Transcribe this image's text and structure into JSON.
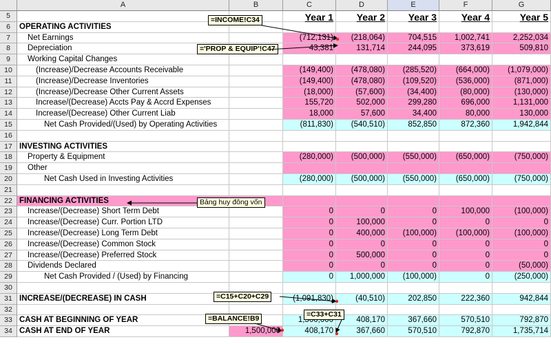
{
  "columns": [
    "A",
    "B",
    "C",
    "D",
    "E",
    "F",
    "G"
  ],
  "selected_column": "E",
  "rows": [
    {
      "n": "5",
      "a": "",
      "b": "",
      "v": [
        "Year 1",
        "Year 2",
        "Year 3",
        "Year 4",
        "Year 5"
      ],
      "type": "header"
    },
    {
      "n": "6",
      "a": "OPERATING ACTIVITIES",
      "b": "",
      "v": [
        "",
        "",
        "",
        "",
        ""
      ],
      "type": "section"
    },
    {
      "n": "7",
      "a": "Net Earnings",
      "b": "",
      "v": [
        "(712,131)",
        "(218,064)",
        "704,515",
        "1,002,741",
        "2,252,034"
      ],
      "type": "pink",
      "indent": 2
    },
    {
      "n": "8",
      "a": "Depreciation",
      "b": "",
      "v": [
        "43,381",
        "131,714",
        "244,095",
        "373,619",
        "509,810"
      ],
      "type": "pink",
      "indent": 2
    },
    {
      "n": "9",
      "a": "Working Capital Changes",
      "b": "",
      "v": [
        "",
        "",
        "",
        "",
        ""
      ],
      "type": "plain",
      "indent": 2
    },
    {
      "n": "10",
      "a": "(Increase)/Decrease Accounts Receivable",
      "b": "",
      "v": [
        "(149,400)",
        "(478,080)",
        "(285,520)",
        "(664,000)",
        "(1,079,000)"
      ],
      "type": "pink",
      "indent": 4
    },
    {
      "n": "11",
      "a": "(Increase)/Decrease Inventories",
      "b": "",
      "v": [
        "(149,400)",
        "(478,080)",
        "(109,520)",
        "(536,000)",
        "(871,000)"
      ],
      "type": "pink",
      "indent": 4
    },
    {
      "n": "12",
      "a": "(Increase)/Decrease Other Current Assets",
      "b": "",
      "v": [
        "(18,000)",
        "(57,600)",
        "(34,400)",
        "(80,000)",
        "(130,000)"
      ],
      "type": "pink",
      "indent": 4
    },
    {
      "n": "13",
      "a": "Increase/(Decrease) Accts Pay & Accrd Expenses",
      "b": "",
      "v": [
        "155,720",
        "502,000",
        "299,280",
        "696,000",
        "1,131,000"
      ],
      "type": "pink",
      "indent": 4
    },
    {
      "n": "14",
      "a": "Increase/(Decrease) Other Current Liab",
      "b": "",
      "v": [
        "18,000",
        "57,600",
        "34,400",
        "80,000",
        "130,000"
      ],
      "type": "pink",
      "indent": 4
    },
    {
      "n": "15",
      "a": "Net Cash Provided/(Used) by Operating Activities",
      "b": "",
      "v": [
        "(811,830)",
        "(540,510)",
        "852,850",
        "872,360",
        "1,942,844"
      ],
      "type": "cyan",
      "indent": 6
    },
    {
      "n": "16",
      "a": "",
      "b": "",
      "v": [
        "",
        "",
        "",
        "",
        ""
      ],
      "type": "plain"
    },
    {
      "n": "17",
      "a": "INVESTING ACTIVITIES",
      "b": "",
      "v": [
        "",
        "",
        "",
        "",
        ""
      ],
      "type": "section"
    },
    {
      "n": "18",
      "a": "Property & Equipment",
      "b": "",
      "v": [
        "(280,000)",
        "(500,000)",
        "(550,000)",
        "(650,000)",
        "(750,000)"
      ],
      "type": "pink",
      "indent": 2
    },
    {
      "n": "19",
      "a": "Other",
      "b": "",
      "v": [
        "",
        "",
        "",
        "",
        ""
      ],
      "type": "pink",
      "indent": 2
    },
    {
      "n": "20",
      "a": "Net Cash Used in Investing Activities",
      "b": "",
      "v": [
        "(280,000)",
        "(500,000)",
        "(550,000)",
        "(650,000)",
        "(750,000)"
      ],
      "type": "cyan",
      "indent": 6
    },
    {
      "n": "21",
      "a": "",
      "b": "",
      "v": [
        "",
        "",
        "",
        "",
        ""
      ],
      "type": "plain"
    },
    {
      "n": "22",
      "a": "FINANCING ACTIVITIES",
      "b": "",
      "v": [
        "",
        "",
        "",
        "",
        ""
      ],
      "type": "section_pink"
    },
    {
      "n": "23",
      "a": "Increase/(Decrease) Short Term Debt",
      "b": "",
      "v": [
        "0",
        "0",
        "0",
        "100,000",
        "(100,000)"
      ],
      "type": "pink",
      "indent": 2
    },
    {
      "n": "24",
      "a": "Increase/(Decrease) Curr. Portion LTD",
      "b": "",
      "v": [
        "0",
        "100,000",
        "0",
        "0",
        "0"
      ],
      "type": "pink",
      "indent": 2
    },
    {
      "n": "25",
      "a": "Increase/(Decrease) Long Term Debt",
      "b": "",
      "v": [
        "0",
        "400,000",
        "(100,000)",
        "(100,000)",
        "(100,000)"
      ],
      "type": "pink",
      "indent": 2
    },
    {
      "n": "26",
      "a": "Increase/(Decrease) Common Stock",
      "b": "",
      "v": [
        "0",
        "0",
        "0",
        "0",
        "0"
      ],
      "type": "pink",
      "indent": 2
    },
    {
      "n": "27",
      "a": "Increase/(Decrease) Preferred Stock",
      "b": "",
      "v": [
        "0",
        "500,000",
        "0",
        "0",
        "0"
      ],
      "type": "pink",
      "indent": 2
    },
    {
      "n": "28",
      "a": "Dividends Declared",
      "b": "",
      "v": [
        "0",
        "0",
        "0",
        "0",
        "(50,000)"
      ],
      "type": "pink",
      "indent": 2
    },
    {
      "n": "29",
      "a": "Net Cash Provided / (Used) by Financing",
      "b": "",
      "v": [
        "0",
        "1,000,000",
        "(100,000)",
        "0",
        "(250,000)"
      ],
      "type": "cyan",
      "indent": 6
    },
    {
      "n": "30",
      "a": "",
      "b": "",
      "v": [
        "",
        "",
        "",
        "",
        ""
      ],
      "type": "plain"
    },
    {
      "n": "31",
      "a": "INCREASE/(DECREASE) IN CASH",
      "b": "",
      "v": [
        "(1,091,830)",
        "(40,510)",
        "202,850",
        "222,360",
        "942,844"
      ],
      "type": "section_cyan"
    },
    {
      "n": "32",
      "a": "",
      "b": "",
      "v": [
        "",
        "",
        "",
        "",
        ""
      ],
      "type": "plain"
    },
    {
      "n": "33",
      "a": "CASH AT BEGINNING OF YEAR",
      "b": "",
      "v": [
        "1,500,000",
        "408,170",
        "367,660",
        "570,510",
        "792,870"
      ],
      "type": "section_cyan"
    },
    {
      "n": "34",
      "a": "CASH AT END OF YEAR",
      "b": "1,500,000",
      "v": [
        "408,170",
        "367,660",
        "570,510",
        "792,870",
        "1,735,714"
      ],
      "type": "section_cyan",
      "b_pink": true
    }
  ],
  "notes": {
    "income": "=INCOME!C34",
    "prop": "='PROP & EQUIP'!C47",
    "vietnamese": "Bảng huy đông vốn",
    "sum_cash": "=C15+C20+C29",
    "c33c31": "=C33+C31",
    "balance": "=BALANCE!B9"
  },
  "colors": {
    "pink": "#ff99cc",
    "cyan": "#ccffff",
    "header_gray": "#e8e8e8",
    "note_bg": "#ffffe1"
  }
}
